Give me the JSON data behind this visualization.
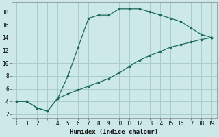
{
  "xlabel": "Humidex (Indice chaleur)",
  "bg_color": "#cce8e8",
  "grid_color": "#aacccc",
  "line_color": "#1a6b5a",
  "x_upper": [
    0,
    1,
    2,
    3,
    4,
    5,
    6,
    7,
    8,
    9,
    10,
    11,
    12,
    13,
    14,
    15,
    16,
    17,
    18,
    19
  ],
  "y_upper": [
    4,
    4,
    3,
    2.5,
    4.5,
    8,
    12.5,
    17,
    17.5,
    17.5,
    18.5,
    18.5,
    18.5,
    18,
    17.5,
    17,
    16.5,
    15.5,
    14.5,
    14
  ],
  "x_lower": [
    0,
    1,
    2,
    3,
    4,
    5,
    6,
    7,
    8,
    9,
    10,
    11,
    12,
    13,
    14,
    15,
    16,
    17,
    18,
    19
  ],
  "y_lower": [
    4,
    4,
    3,
    2.5,
    4.5,
    5.2,
    5.8,
    6.4,
    7.0,
    7.6,
    8.5,
    9.5,
    10.5,
    11.2,
    11.8,
    12.5,
    12.9,
    13.3,
    13.7,
    14
  ],
  "xlim": [
    -0.5,
    19.5
  ],
  "ylim": [
    1.5,
    19.5
  ],
  "xticks": [
    0,
    1,
    2,
    3,
    4,
    5,
    6,
    7,
    8,
    9,
    10,
    11,
    12,
    13,
    14,
    15,
    16,
    17,
    18,
    19
  ],
  "yticks": [
    2,
    4,
    6,
    8,
    10,
    12,
    14,
    16,
    18
  ]
}
